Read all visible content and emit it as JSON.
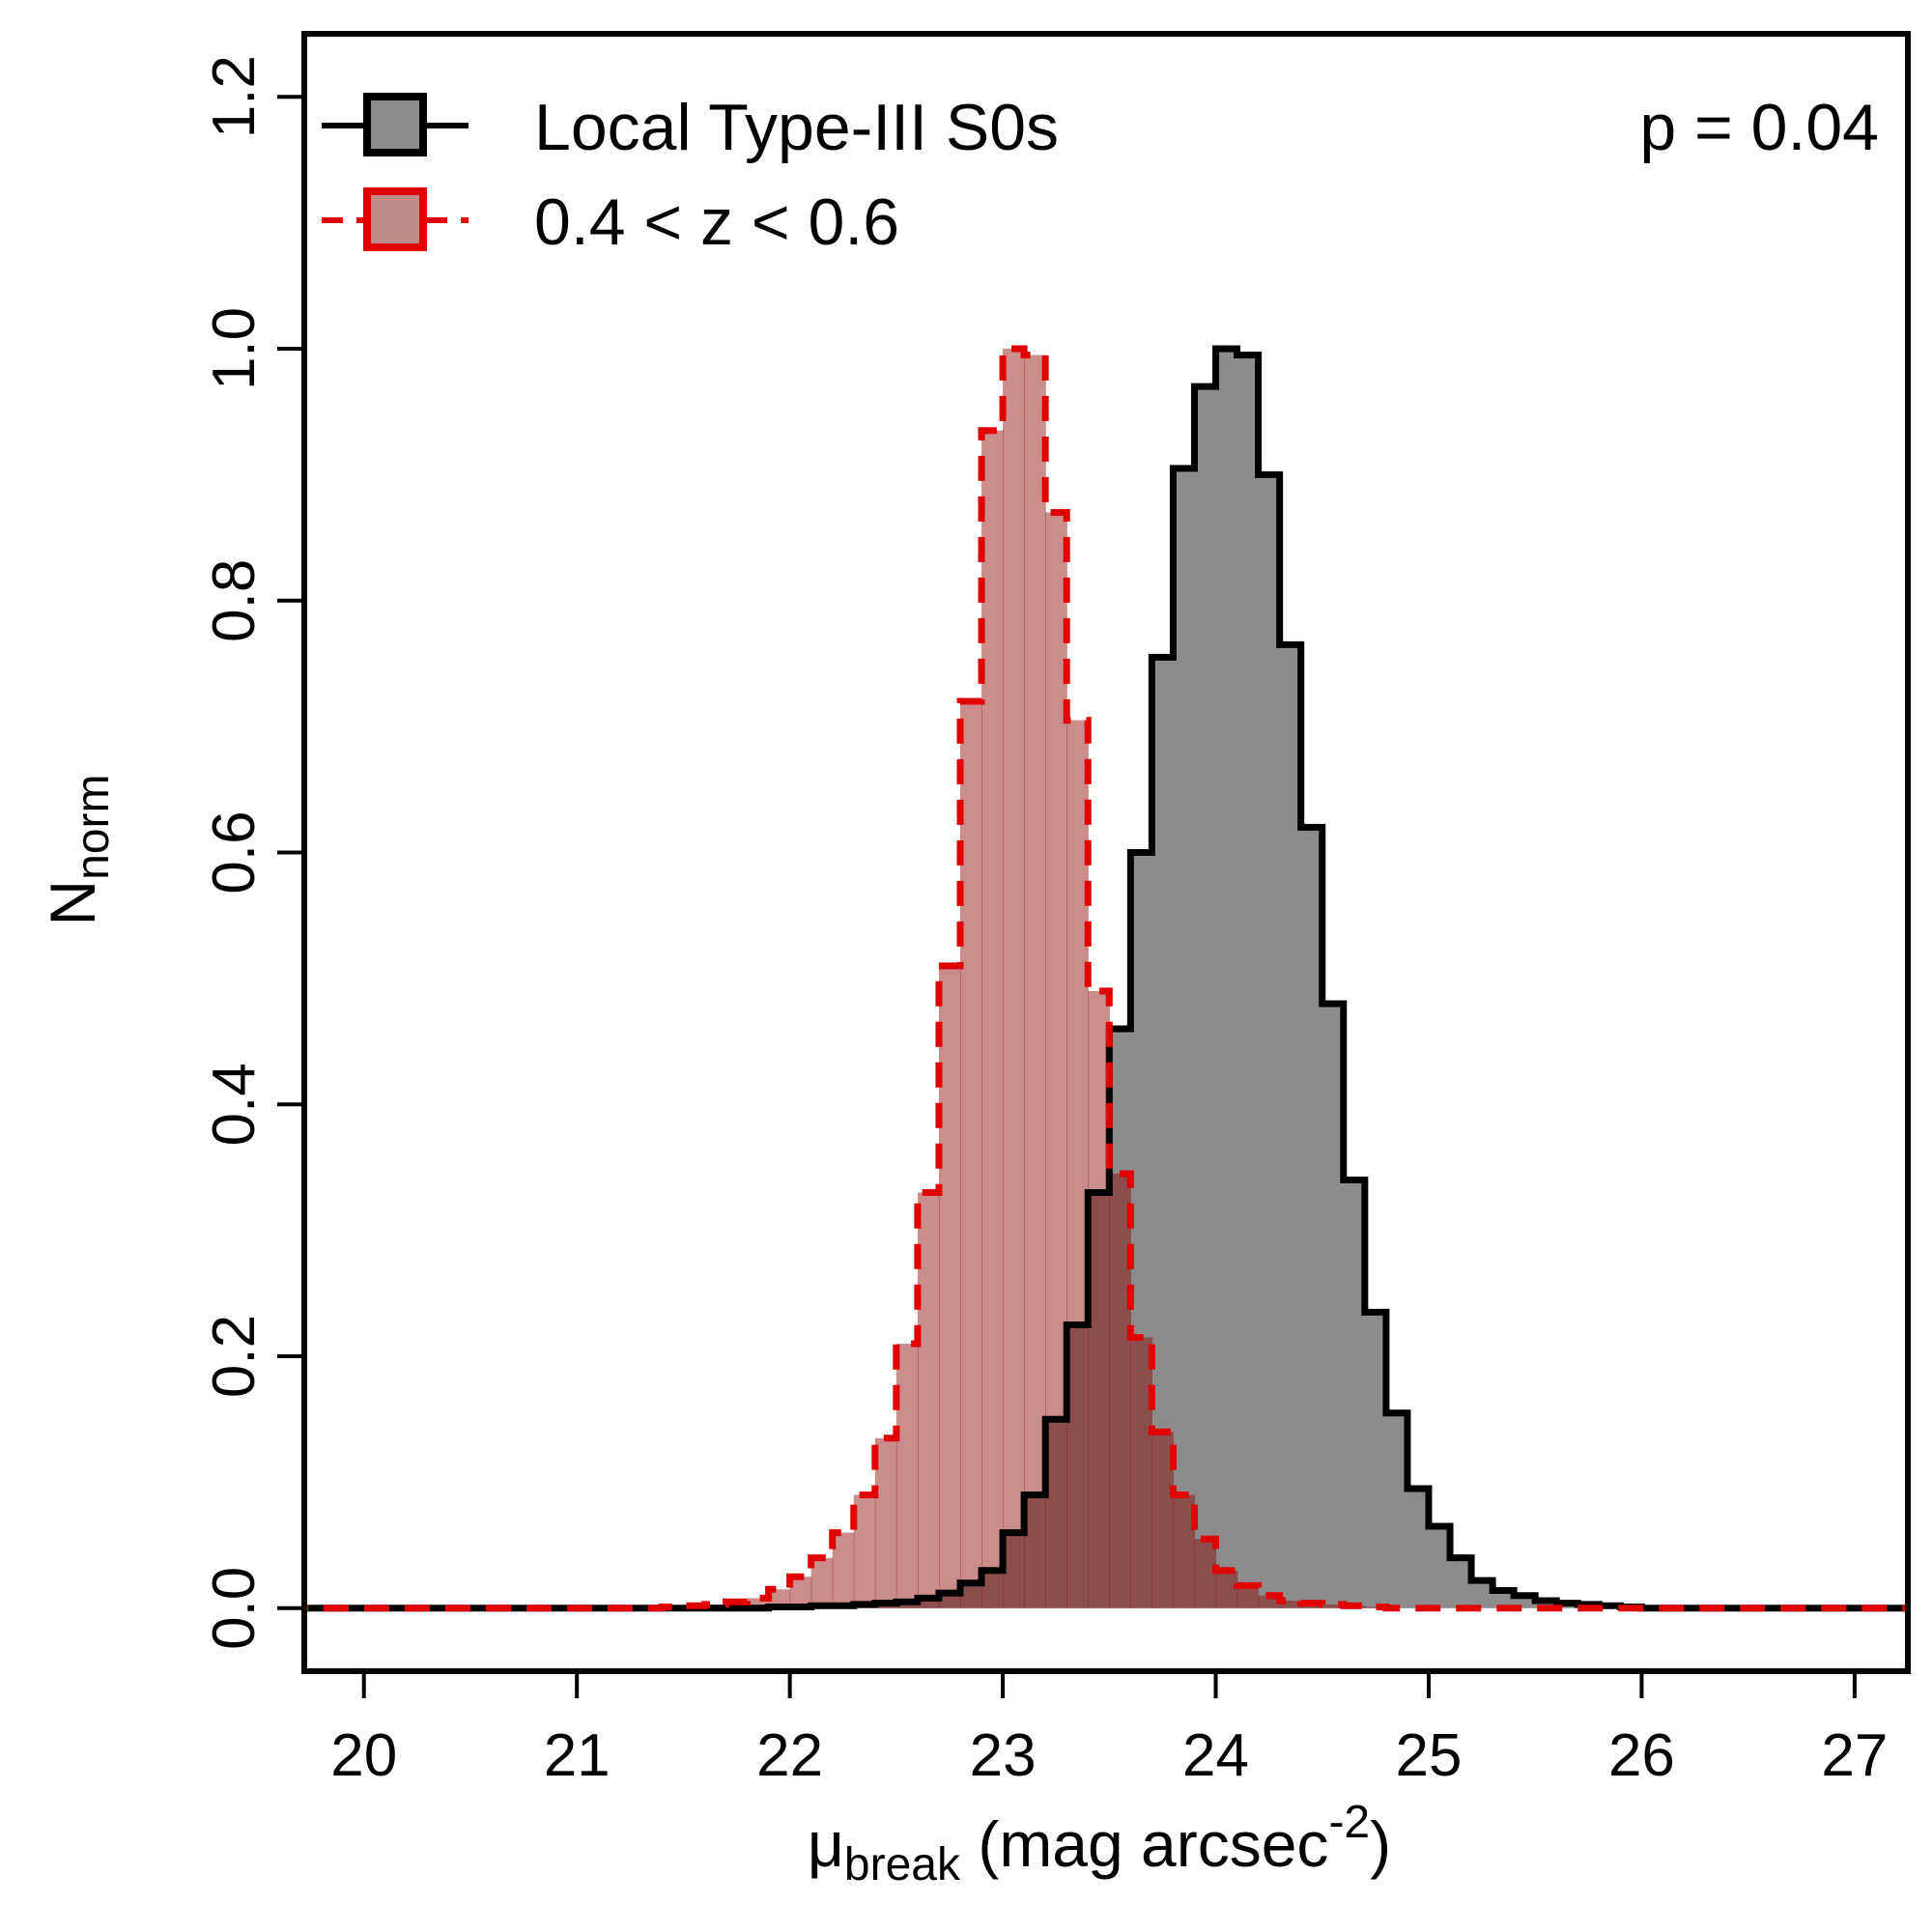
{
  "chart_data": {
    "type": "histogram",
    "xlabel": {
      "symbol": "μ",
      "subscript": "break",
      "unit_pre": " (mag arcsec",
      "superscript": "-2",
      "unit_post": ")"
    },
    "ylabel": {
      "symbol": "N",
      "subscript": "norm"
    },
    "xlim": [
      19.72,
      27.25
    ],
    "ylim": [
      -0.05,
      1.25
    ],
    "xticks": [
      20,
      21,
      22,
      23,
      24,
      25,
      26,
      27
    ],
    "xtick_labels": [
      "20",
      "21",
      "22",
      "23",
      "24",
      "25",
      "26",
      "27"
    ],
    "yticks": [
      0.0,
      0.2,
      0.4,
      0.6,
      0.8,
      1.0,
      1.2
    ],
    "ytick_labels": [
      "0.0",
      "0.2",
      "0.4",
      "0.6",
      "0.8",
      "1.0",
      "1.2"
    ],
    "bin_width": 0.1,
    "annotation": "p = 0.04",
    "legend_position": "top-left",
    "series": [
      {
        "name": "Local Type-III S0s",
        "line_color": "#000000",
        "fill_color": "#8c8c8c",
        "fill_opacity": 1.0,
        "dashed": false,
        "bin_left": [
          21.9,
          22.0,
          22.1,
          22.2,
          22.3,
          22.4,
          22.5,
          22.6,
          22.7,
          22.8,
          22.9,
          23.0,
          23.1,
          23.2,
          23.3,
          23.4,
          23.5,
          23.6,
          23.7,
          23.8,
          23.9,
          24.0,
          24.1,
          24.2,
          24.3,
          24.4,
          24.5,
          24.6,
          24.7,
          24.8,
          24.9,
          25.0,
          25.1,
          25.2,
          25.3,
          25.4,
          25.5,
          25.6,
          25.7,
          25.8,
          25.9
        ],
        "values": [
          0.001,
          0.001,
          0.002,
          0.002,
          0.003,
          0.004,
          0.005,
          0.008,
          0.012,
          0.02,
          0.03,
          0.06,
          0.09,
          0.15,
          0.225,
          0.33,
          0.46,
          0.6,
          0.755,
          0.905,
          0.97,
          1.0,
          0.995,
          0.9,
          0.765,
          0.62,
          0.48,
          0.34,
          0.235,
          0.155,
          0.095,
          0.065,
          0.04,
          0.022,
          0.014,
          0.01,
          0.006,
          0.004,
          0.003,
          0.002,
          0.001
        ]
      },
      {
        "name": "0.4 < z < 0.6",
        "line_color": "#e00000",
        "fill_color": "#8b0000",
        "fill_opacity": 0.45,
        "dashed": true,
        "bin_left": [
          21.4,
          21.5,
          21.6,
          21.7,
          21.8,
          21.9,
          22.0,
          22.1,
          22.2,
          22.3,
          22.4,
          22.5,
          22.6,
          22.7,
          22.8,
          22.9,
          23.0,
          23.1,
          23.2,
          23.3,
          23.4,
          23.5,
          23.6,
          23.7,
          23.8,
          23.9,
          24.0,
          24.1,
          24.2,
          24.3,
          24.4,
          24.5,
          24.6,
          24.7
        ],
        "values": [
          0.001,
          0.002,
          0.003,
          0.005,
          0.008,
          0.015,
          0.025,
          0.04,
          0.06,
          0.09,
          0.135,
          0.21,
          0.33,
          0.51,
          0.72,
          0.935,
          1.0,
          0.995,
          0.87,
          0.705,
          0.49,
          0.345,
          0.215,
          0.14,
          0.09,
          0.055,
          0.03,
          0.018,
          0.01,
          0.006,
          0.004,
          0.003,
          0.002,
          0.001
        ]
      }
    ]
  }
}
